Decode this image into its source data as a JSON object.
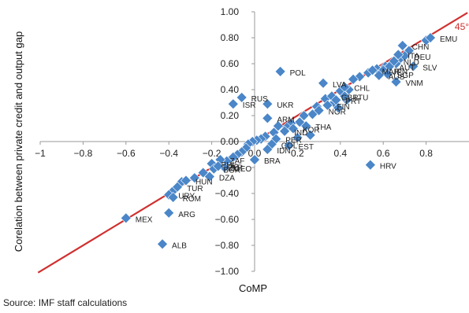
{
  "source_note": "Source: IMF staff calculations",
  "chart_data": {
    "type": "scatter",
    "xlabel": "CoMP",
    "ylabel": "Corelation between private credit and output gap",
    "xlim": [
      -1,
      1
    ],
    "ylim": [
      -1,
      1
    ],
    "x_ticks": [
      "−1",
      "−0.8",
      "−0.6",
      "−0.4",
      "−0.2",
      "0.0",
      "0.2",
      "0.4",
      "0.6",
      "0.8"
    ],
    "x_tick_values": [
      -1,
      -0.8,
      -0.6,
      -0.4,
      -0.2,
      0,
      0.2,
      0.4,
      0.6,
      0.8
    ],
    "y_ticks": [
      "−1.00",
      "−0.80",
      "−0.60",
      "−0.40",
      "−0.20",
      "0.00",
      "0.20",
      "0.40",
      "0.60",
      "0.80",
      "1.00"
    ],
    "y_tick_values": [
      -1,
      -0.8,
      -0.6,
      -0.4,
      -0.2,
      0,
      0.2,
      0.4,
      0.6,
      0.8,
      1.0
    ],
    "diagonal_label": "45°",
    "colors": {
      "marker": "#4a86c8",
      "line": "#d03030"
    },
    "labeled_points": [
      {
        "label": "EMU",
        "x": 0.82,
        "y": 0.8
      },
      {
        "label": "CHN",
        "x": 0.69,
        "y": 0.74
      },
      {
        "label": "DEU",
        "x": 0.7,
        "y": 0.66
      },
      {
        "label": "SLV",
        "x": 0.74,
        "y": 0.58
      },
      {
        "label": "VNM",
        "x": 0.66,
        "y": 0.46
      },
      {
        "label": "AUT",
        "x": 0.63,
        "y": 0.58
      },
      {
        "label": "POL",
        "x": 0.12,
        "y": 0.54
      },
      {
        "label": "LVA",
        "x": 0.32,
        "y": 0.45
      },
      {
        "label": "CHL",
        "x": 0.42,
        "y": 0.42
      },
      {
        "label": "LTU",
        "x": 0.42,
        "y": 0.35
      },
      {
        "label": "RUS",
        "x": -0.06,
        "y": 0.34
      },
      {
        "label": "ISR",
        "x": -0.1,
        "y": 0.29
      },
      {
        "label": "UKR",
        "x": 0.06,
        "y": 0.29
      },
      {
        "label": "ARM",
        "x": 0.06,
        "y": 0.18
      },
      {
        "label": "EST",
        "x": 0.16,
        "y": -0.03
      },
      {
        "label": "BRA",
        "x": 0.0,
        "y": -0.14
      },
      {
        "label": "HRV",
        "x": 0.54,
        "y": -0.18
      },
      {
        "label": "DZA",
        "x": -0.21,
        "y": -0.27
      },
      {
        "label": "HUN",
        "x": -0.32,
        "y": -0.3
      },
      {
        "label": "TUR",
        "x": -0.36,
        "y": -0.35
      },
      {
        "label": "URY",
        "x": -0.4,
        "y": -0.41
      },
      {
        "label": "ROM",
        "x": -0.38,
        "y": -0.43
      },
      {
        "label": "ARG",
        "x": -0.4,
        "y": -0.55
      },
      {
        "label": "MEX",
        "x": -0.6,
        "y": -0.59
      },
      {
        "label": "ALB",
        "x": -0.43,
        "y": -0.79
      },
      {
        "label": "MAR",
        "x": 0.55,
        "y": 0.55
      },
      {
        "label": "JPN",
        "x": 0.6,
        "y": 0.55
      },
      {
        "label": "SGP",
        "x": 0.62,
        "y": 0.52
      },
      {
        "label": "AUS",
        "x": 0.58,
        "y": 0.51
      },
      {
        "label": "NLD",
        "x": 0.65,
        "y": 0.62
      },
      {
        "label": "ITA",
        "x": 0.67,
        "y": 0.67
      },
      {
        "label": "GBR",
        "x": 0.36,
        "y": 0.35
      },
      {
        "label": "PRT",
        "x": 0.38,
        "y": 0.32
      },
      {
        "label": "FIN",
        "x": 0.34,
        "y": 0.28
      },
      {
        "label": "NOR",
        "x": 0.3,
        "y": 0.24
      },
      {
        "label": "THA",
        "x": 0.24,
        "y": 0.12
      },
      {
        "label": "KOR",
        "x": 0.18,
        "y": 0.1
      },
      {
        "label": "IND",
        "x": 0.14,
        "y": 0.08
      },
      {
        "label": "PER",
        "x": 0.1,
        "y": 0.02
      },
      {
        "label": "COL",
        "x": 0.08,
        "y": -0.02
      },
      {
        "label": "IDN",
        "x": 0.06,
        "y": -0.06
      },
      {
        "label": "PHL",
        "x": -0.2,
        "y": -0.17
      },
      {
        "label": "BGR",
        "x": -0.19,
        "y": -0.21
      },
      {
        "label": "ZAF",
        "x": -0.16,
        "y": -0.14
      },
      {
        "label": "GEO",
        "x": -0.14,
        "y": -0.2
      },
      {
        "label": "BLR",
        "x": -0.17,
        "y": -0.19
      }
    ],
    "unlabeled_points": [
      {
        "x": 0.8,
        "y": 0.78
      },
      {
        "x": 0.72,
        "y": 0.7
      },
      {
        "x": 0.68,
        "y": 0.64
      },
      {
        "x": 0.66,
        "y": 0.6
      },
      {
        "x": 0.61,
        "y": 0.58
      },
      {
        "x": 0.57,
        "y": 0.56
      },
      {
        "x": 0.53,
        "y": 0.53
      },
      {
        "x": 0.49,
        "y": 0.5
      },
      {
        "x": 0.46,
        "y": 0.48
      },
      {
        "x": 0.44,
        "y": 0.4
      },
      {
        "x": 0.4,
        "y": 0.39
      },
      {
        "x": 0.37,
        "y": 0.3
      },
      {
        "x": 0.33,
        "y": 0.33
      },
      {
        "x": 0.29,
        "y": 0.27
      },
      {
        "x": 0.27,
        "y": 0.21
      },
      {
        "x": 0.23,
        "y": 0.2
      },
      {
        "x": 0.21,
        "y": 0.15
      },
      {
        "x": 0.17,
        "y": 0.14
      },
      {
        "x": 0.15,
        "y": 0.11
      },
      {
        "x": 0.11,
        "y": 0.12
      },
      {
        "x": 0.09,
        "y": 0.07
      },
      {
        "x": 0.05,
        "y": 0.04
      },
      {
        "x": 0.03,
        "y": 0.02
      },
      {
        "x": 0.01,
        "y": 0.01
      },
      {
        "x": -0.01,
        "y": 0.0
      },
      {
        "x": -0.03,
        "y": -0.02
      },
      {
        "x": -0.04,
        "y": -0.05
      },
      {
        "x": -0.06,
        "y": -0.08
      },
      {
        "x": -0.08,
        "y": -0.1
      },
      {
        "x": -0.1,
        "y": -0.12
      },
      {
        "x": -0.13,
        "y": -0.15
      },
      {
        "x": -0.24,
        "y": -0.24
      },
      {
        "x": -0.28,
        "y": -0.28
      },
      {
        "x": -0.34,
        "y": -0.31
      },
      {
        "x": -0.38,
        "y": -0.38
      },
      {
        "x": 0.43,
        "y": 0.32
      },
      {
        "x": 0.39,
        "y": 0.26
      },
      {
        "x": 0.26,
        "y": 0.05
      },
      {
        "x": 0.2,
        "y": 0.03
      }
    ]
  }
}
